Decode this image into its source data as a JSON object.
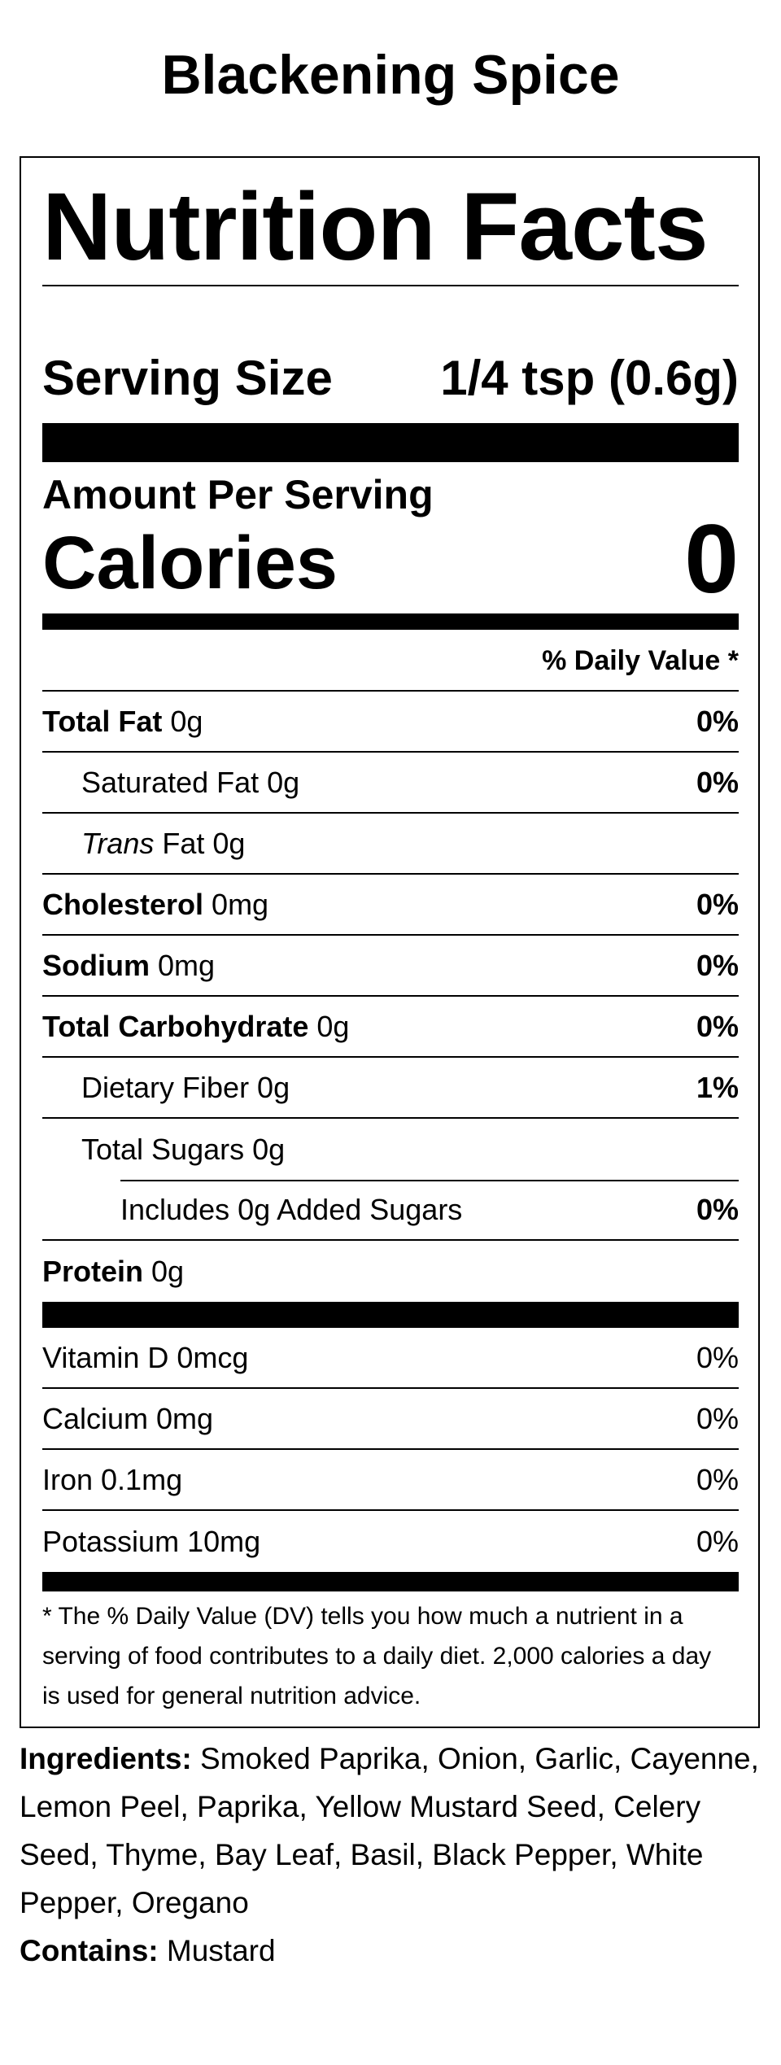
{
  "product": {
    "title": "Blackening Spice"
  },
  "label": {
    "heading": "Nutrition Facts",
    "serving_size_label": "Serving Size",
    "serving_size_value": "1/4 tsp (0.6g)",
    "amount_per_serving": "Amount Per Serving",
    "calories_label": "Calories",
    "calories_value": "0",
    "daily_value_header": "% Daily Value *"
  },
  "nutrients": {
    "total_fat": {
      "name": "Total Fat",
      "amount": " 0g",
      "dv": "0%"
    },
    "saturated_fat": {
      "name": "Saturated Fat 0g",
      "dv": "0%"
    },
    "trans_fat": {
      "name_italic": "Trans",
      "name_rest": " Fat 0g"
    },
    "cholesterol": {
      "name": "Cholesterol",
      "amount": " 0mg",
      "dv": "0%"
    },
    "sodium": {
      "name": "Sodium",
      "amount": " 0mg",
      "dv": "0%"
    },
    "total_carbohydrate": {
      "name": "Total Carbohydrate",
      "amount": " 0g",
      "dv": "0%"
    },
    "dietary_fiber": {
      "name": "Dietary Fiber 0g",
      "dv": "1%"
    },
    "total_sugars": {
      "name": "Total Sugars 0g"
    },
    "added_sugars": {
      "name": "Includes 0g Added Sugars",
      "dv": "0%"
    },
    "protein": {
      "name": "Protein",
      "amount": " 0g"
    }
  },
  "vitamins": [
    {
      "name": "Vitamin D 0mcg",
      "dv": "0%"
    },
    {
      "name": "Calcium 0mg",
      "dv": "0%"
    },
    {
      "name": "Iron 0.1mg",
      "dv": "0%"
    },
    {
      "name": "Potassium 10mg",
      "dv": "0%"
    }
  ],
  "footnote": "* The % Daily Value (DV) tells you how much a nutrient in a serving of food contributes to a daily diet. 2,000 calories a day is used for general nutrition advice.",
  "ingredients": {
    "label": "Ingredients:",
    "text": " Smoked Paprika, Onion, Garlic, Cayenne, Lemon Peel, Paprika, Yellow Mustard Seed, Celery Seed, Thyme, Bay Leaf, Basil, Black Pepper, White Pepper, Oregano"
  },
  "contains": {
    "label": "Contains:",
    "text": " Mustard"
  }
}
